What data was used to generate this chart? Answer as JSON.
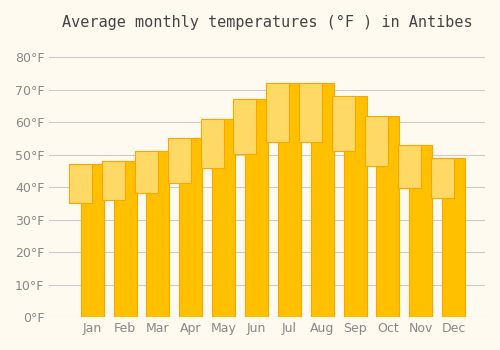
{
  "title": "Average monthly temperatures (°F ) in Antibes",
  "months": [
    "Jan",
    "Feb",
    "Mar",
    "Apr",
    "May",
    "Jun",
    "Jul",
    "Aug",
    "Sep",
    "Oct",
    "Nov",
    "Dec"
  ],
  "values": [
    47,
    48,
    51,
    55,
    61,
    67,
    72,
    72,
    68,
    62,
    53,
    49
  ],
  "bar_color_face": "#FFC000",
  "bar_color_edge": "#FFA500",
  "background_color": "#FFFAF0",
  "grid_color": "#CCCCCC",
  "text_color": "#888888",
  "title_color": "#444444",
  "ylim": [
    0,
    85
  ],
  "yticks": [
    0,
    10,
    20,
    30,
    40,
    50,
    60,
    70,
    80
  ],
  "ytick_labels": [
    "0°F",
    "10°F",
    "20°F",
    "30°F",
    "40°F",
    "50°F",
    "60°F",
    "70°F",
    "80°F"
  ],
  "title_fontsize": 11,
  "tick_fontsize": 9
}
